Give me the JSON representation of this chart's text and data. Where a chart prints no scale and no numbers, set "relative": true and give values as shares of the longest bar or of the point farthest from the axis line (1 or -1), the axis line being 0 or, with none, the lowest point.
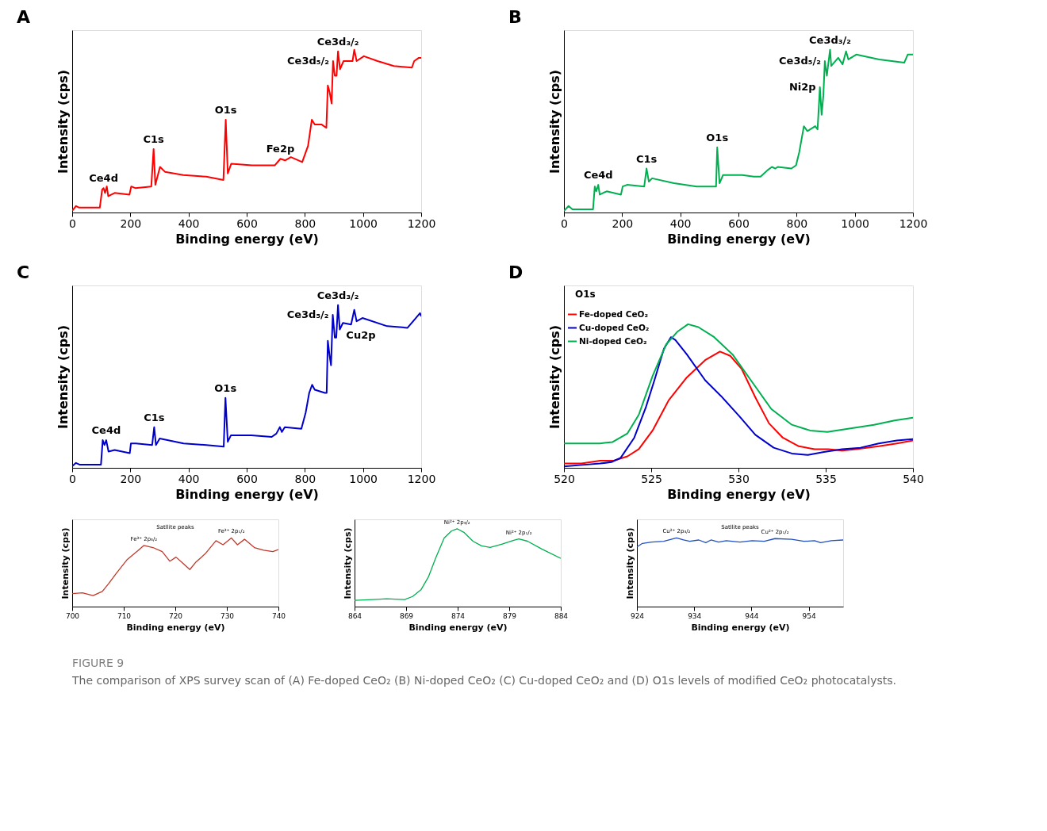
{
  "chart_data": [
    {
      "type": "line",
      "title": "A",
      "xlabel": "Binding energy (eV)",
      "ylabel": "Intensity (cps)",
      "relative": true,
      "xlim": [
        0,
        1200
      ],
      "xticks": [
        0,
        200,
        400,
        600,
        800,
        1000,
        1200
      ],
      "x": [
        0,
        13,
        24,
        95,
        103,
        108,
        113,
        119,
        124,
        146,
        197,
        203,
        217,
        272,
        280,
        286,
        302,
        319,
        382,
        461,
        520,
        528,
        535,
        547,
        618,
        665,
        697,
        716,
        732,
        752,
        791,
        811,
        824,
        834,
        858,
        874,
        879,
        885,
        892,
        897,
        903,
        909,
        914,
        921,
        933,
        964,
        970,
        978,
        1003,
        1050,
        1106,
        1168,
        1176,
        1192,
        1200
      ],
      "series": [
        {
          "color": "#ff0000",
          "values": [
            0.01,
            0.04,
            0.03,
            0.03,
            0.14,
            0.15,
            0.12,
            0.16,
            0.1,
            0.12,
            0.11,
            0.16,
            0.15,
            0.16,
            0.39,
            0.17,
            0.28,
            0.25,
            0.23,
            0.22,
            0.2,
            0.57,
            0.24,
            0.3,
            0.29,
            0.29,
            0.29,
            0.33,
            0.32,
            0.34,
            0.31,
            0.41,
            0.57,
            0.54,
            0.54,
            0.52,
            0.78,
            0.74,
            0.67,
            0.93,
            0.84,
            0.84,
            0.99,
            0.88,
            0.93,
            0.93,
            1.0,
            0.93,
            0.96,
            0.93,
            0.9,
            0.89,
            0.93,
            0.95,
            0.95
          ]
        }
      ],
      "annotations": [
        {
          "text": "Ce4d",
          "x": 108,
          "y": 0.15
        },
        {
          "text": "C1s",
          "x": 280,
          "y": 0.39
        },
        {
          "text": "O1s",
          "x": 528,
          "y": 0.57
        },
        {
          "text": "Fe2p",
          "x": 716,
          "y": 0.33
        },
        {
          "text": "Ce3d₅/₂",
          "x": 897,
          "y": 0.93
        },
        {
          "text": "Ce3d₃/₂",
          "x": 914,
          "y": 0.99
        }
      ]
    },
    {
      "type": "line",
      "title": "B",
      "xlabel": "Binding energy (eV)",
      "ylabel": "Intensity (cps)",
      "relative": true,
      "xlim": [
        0,
        1200
      ],
      "xticks": [
        0,
        200,
        400,
        600,
        800,
        1000,
        1200
      ],
      "x": [
        0,
        16,
        29,
        100,
        106,
        111,
        118,
        123,
        147,
        196,
        202,
        217,
        276,
        284,
        292,
        303,
        378,
        456,
        523,
        527,
        535,
        547,
        613,
        653,
        676,
        700,
        715,
        727,
        735,
        782,
        798,
        809,
        825,
        837,
        864,
        872,
        880,
        886,
        892,
        897,
        904,
        910,
        915,
        919,
        943,
        958,
        970,
        978,
        1005,
        1084,
        1170,
        1182,
        1200
      ],
      "series": [
        {
          "color": "#00b050",
          "values": [
            0.01,
            0.04,
            0.02,
            0.02,
            0.16,
            0.13,
            0.17,
            0.11,
            0.13,
            0.11,
            0.16,
            0.17,
            0.16,
            0.27,
            0.19,
            0.21,
            0.18,
            0.16,
            0.16,
            0.4,
            0.18,
            0.23,
            0.23,
            0.22,
            0.22,
            0.26,
            0.28,
            0.27,
            0.28,
            0.27,
            0.29,
            0.37,
            0.53,
            0.5,
            0.53,
            0.51,
            0.77,
            0.6,
            0.72,
            0.93,
            0.84,
            0.93,
            1.0,
            0.9,
            0.95,
            0.91,
            0.99,
            0.94,
            0.97,
            0.94,
            0.92,
            0.97,
            0.97
          ]
        }
      ],
      "annotations": [
        {
          "text": "Ce4d",
          "x": 118,
          "y": 0.17
        },
        {
          "text": "C1s",
          "x": 284,
          "y": 0.27
        },
        {
          "text": "O1s",
          "x": 527,
          "y": 0.4
        },
        {
          "text": "Ni2p",
          "x": 880,
          "y": 0.77
        },
        {
          "text": "Ce3d₅/₂",
          "x": 897,
          "y": 0.93
        },
        {
          "text": "Ce3d₃/₂",
          "x": 915,
          "y": 1.0
        }
      ]
    },
    {
      "type": "line",
      "title": "C",
      "xlabel": "Binding energy (eV)",
      "ylabel": "Intensity (cps)",
      "relative": true,
      "xlim": [
        0,
        1200
      ],
      "xticks": [
        0,
        200,
        400,
        600,
        800,
        1000,
        1200
      ],
      "x": [
        0,
        13,
        25,
        99,
        105,
        111,
        117,
        125,
        146,
        198,
        202,
        219,
        275,
        282,
        288,
        301,
        383,
        461,
        521,
        527,
        535,
        546,
        616,
        686,
        702,
        714,
        721,
        731,
        788,
        803,
        815,
        825,
        834,
        869,
        875,
        879,
        885,
        890,
        896,
        903,
        908,
        914,
        920,
        931,
        959,
        970,
        978,
        998,
        1083,
        1153,
        1177,
        1196,
        1200
      ],
      "series": [
        {
          "color": "#0000cc",
          "values": [
            0.01,
            0.03,
            0.02,
            0.02,
            0.17,
            0.14,
            0.17,
            0.1,
            0.11,
            0.09,
            0.15,
            0.15,
            0.14,
            0.25,
            0.14,
            0.18,
            0.15,
            0.14,
            0.13,
            0.43,
            0.16,
            0.2,
            0.2,
            0.19,
            0.21,
            0.25,
            0.22,
            0.25,
            0.24,
            0.34,
            0.46,
            0.51,
            0.48,
            0.46,
            0.46,
            0.78,
            0.69,
            0.63,
            0.94,
            0.8,
            0.8,
            1.0,
            0.85,
            0.89,
            0.88,
            0.97,
            0.9,
            0.92,
            0.87,
            0.86,
            0.91,
            0.95,
            0.93
          ]
        }
      ],
      "annotations": [
        {
          "text": "Ce4d",
          "x": 117,
          "y": 0.17
        },
        {
          "text": "C1s",
          "x": 282,
          "y": 0.25
        },
        {
          "text": "O1s",
          "x": 527,
          "y": 0.43
        },
        {
          "text": "Ce3d₅/₂",
          "x": 896,
          "y": 0.94
        },
        {
          "text": "Ce3d₃/₂",
          "x": 914,
          "y": 1.0
        },
        {
          "text": "Cu2p",
          "x": 931,
          "y": 0.89
        }
      ]
    },
    {
      "type": "line",
      "title": "D",
      "xlabel": "Binding energy (eV)",
      "ylabel": "Intensity (cps)",
      "relative": true,
      "xlim": [
        520,
        540
      ],
      "xticks": [
        520,
        525,
        530,
        535,
        540
      ],
      "legend": "top left",
      "series": [
        {
          "name": "Fe-doped CeO₂",
          "color": "#ff0000",
          "x": [
            520,
            521.0,
            522.07,
            522.85,
            523.64,
            524.29,
            525.08,
            526.0,
            527.04,
            528.09,
            528.94,
            529.53,
            530.18,
            530.97,
            531.75,
            532.54,
            533.46,
            534.37,
            535.16,
            535.94,
            536.73,
            538.04,
            539.08,
            540
          ],
          "values": [
            0.03,
            0.03,
            0.05,
            0.05,
            0.08,
            0.13,
            0.26,
            0.47,
            0.63,
            0.75,
            0.81,
            0.78,
            0.69,
            0.49,
            0.31,
            0.21,
            0.15,
            0.13,
            0.13,
            0.12,
            0.13,
            0.15,
            0.17,
            0.19
          ]
        },
        {
          "name": "Cu-doped CeO₂",
          "color": "#0000cc",
          "x": [
            520,
            521.02,
            522.07,
            522.72,
            523.25,
            524.03,
            524.69,
            525.21,
            525.73,
            526.13,
            526.39,
            527.04,
            528.09,
            529.0,
            530.05,
            530.97,
            532.02,
            533.06,
            533.98,
            534.9,
            535.94,
            536.99,
            538.04,
            539.08,
            540
          ],
          "values": [
            0.01,
            0.02,
            0.03,
            0.04,
            0.07,
            0.21,
            0.42,
            0.62,
            0.83,
            0.91,
            0.89,
            0.79,
            0.61,
            0.5,
            0.36,
            0.23,
            0.14,
            0.1,
            0.09,
            0.11,
            0.13,
            0.14,
            0.17,
            0.19,
            0.2
          ]
        },
        {
          "name": "Ni-doped CeO₂",
          "color": "#00b050",
          "x": [
            520,
            521.02,
            522.07,
            522.79,
            523.64,
            524.29,
            525.08,
            525.86,
            526.52,
            527.11,
            527.7,
            528.61,
            529.66,
            530.71,
            531.88,
            533.06,
            534.11,
            535.09,
            536.2,
            537.77,
            538.95,
            540
          ],
          "values": [
            0.17,
            0.17,
            0.17,
            0.18,
            0.24,
            0.37,
            0.64,
            0.86,
            0.95,
            1.0,
            0.98,
            0.91,
            0.79,
            0.61,
            0.41,
            0.3,
            0.26,
            0.25,
            0.27,
            0.3,
            0.33,
            0.35
          ]
        }
      ],
      "annotations": [
        "O1s"
      ]
    },
    {
      "type": "line",
      "xlabel": "Binding energy (eV)",
      "ylabel": "Intensity (cps)",
      "relative": true,
      "xlim": [
        700,
        740
      ],
      "xticks": [
        700,
        710,
        720,
        730,
        740
      ],
      "x": [
        700,
        702,
        704.05,
        705.84,
        707.03,
        708.52,
        710.61,
        712.69,
        713.89,
        715.67,
        717.46,
        718.95,
        720.14,
        721.33,
        722.82,
        724.02,
        725.81,
        727.89,
        729.26,
        730.87,
        732.06,
        733.43,
        735.34,
        737.13,
        738.92,
        740
      ],
      "series": [
        {
          "color": "#c0392b",
          "values": [
            0.19,
            0.2,
            0.16,
            0.22,
            0.33,
            0.48,
            0.68,
            0.81,
            0.89,
            0.86,
            0.8,
            0.66,
            0.72,
            0.64,
            0.54,
            0.65,
            0.77,
            0.96,
            0.9,
            1.0,
            0.9,
            0.98,
            0.86,
            0.82,
            0.8,
            0.83
          ]
        }
      ],
      "annotations": [
        {
          "text": "Fe³⁺ 2p₃/₂",
          "x": 713.89,
          "y": 0.89
        },
        {
          "text": "Fe³⁺ 2p₁/₂",
          "x": 730.87,
          "y": 1.0
        },
        "Satllite peaks"
      ]
    },
    {
      "type": "line",
      "xlabel": "Binding energy (eV)",
      "ylabel": "Intensity (cps)",
      "relative": true,
      "xlim": [
        864,
        884
      ],
      "xticks": [
        864,
        869,
        874,
        879,
        884
      ],
      "x": [
        864,
        865.73,
        867.12,
        868.85,
        869.63,
        870.46,
        871.16,
        871.86,
        872.69,
        873.39,
        873.94,
        874.64,
        875.48,
        876.31,
        877.15,
        878.26,
        879.38,
        879.93,
        880.77,
        882.16,
        884
      ],
      "series": [
        {
          "color": "#00b050",
          "values": [
            0.08,
            0.09,
            0.1,
            0.09,
            0.13,
            0.22,
            0.38,
            0.62,
            0.88,
            0.97,
            1.0,
            0.95,
            0.84,
            0.78,
            0.76,
            0.8,
            0.85,
            0.87,
            0.84,
            0.74,
            0.62
          ]
        }
      ],
      "annotations": [
        {
          "text": "Ni²⁺ 2p₃/₂",
          "x": 873.94,
          "y": 1.0
        },
        {
          "text": "Ni²⁺ 2p₁/₂",
          "x": 879.93,
          "y": 0.87
        }
      ]
    },
    {
      "type": "line",
      "xlabel": "Binding energy (eV)",
      "ylabel": "Intensity (cps)",
      "relative": true,
      "xlim": [
        924,
        960
      ],
      "xticks": [
        924,
        934,
        944,
        954
      ],
      "x": [
        924,
        924.96,
        926.55,
        928.68,
        930.91,
        932.14,
        933.2,
        934.8,
        936.02,
        936.93,
        938.26,
        939.59,
        941.98,
        944.11,
        946.23,
        948.1,
        951.02,
        953.15,
        955.01,
        956.07,
        957.94,
        960
      ],
      "series": [
        {
          "color": "#1f4fc4",
          "values": [
            0.87,
            0.92,
            0.94,
            0.95,
            1.0,
            0.97,
            0.95,
            0.97,
            0.93,
            0.97,
            0.94,
            0.96,
            0.94,
            0.96,
            0.95,
            0.99,
            0.98,
            0.95,
            0.96,
            0.93,
            0.96,
            0.97
          ]
        }
      ],
      "annotations": [
        {
          "text": "Cu²⁺ 2p₃/₂",
          "x": 930.91,
          "y": 1.0
        },
        {
          "text": "Cu²⁺ 2p₁/₂",
          "x": 948.1,
          "y": 0.99
        },
        "Satllite peaks"
      ]
    },
    {
      "type": "other",
      "annotations": [
        "FIGURE 9",
        "The comparison of XPS survey scan of (A) Fe-doped CeO₂ (B) Ni-doped CeO₂ (C) Cu-doped CeO₂ and (D) O1s levels of modified CeO₂ photocatalysts."
      ]
    }
  ]
}
